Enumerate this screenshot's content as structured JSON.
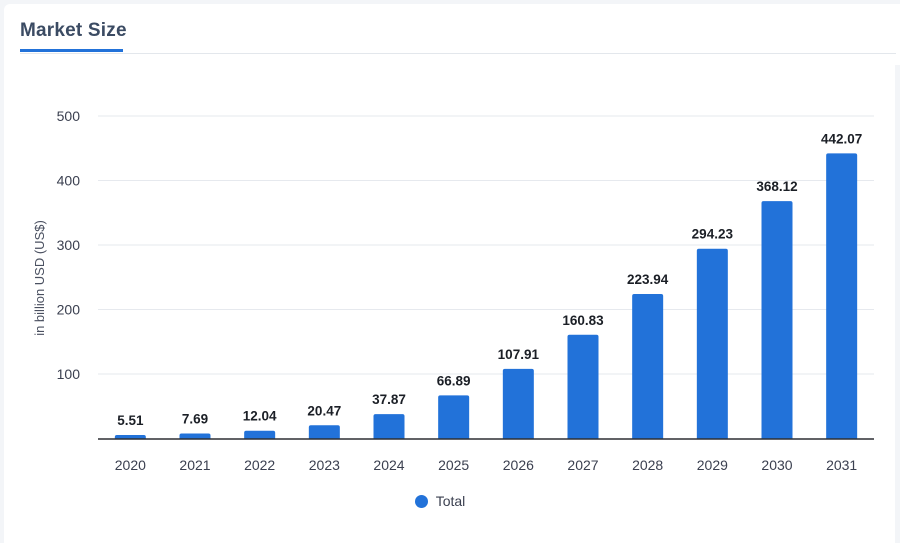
{
  "tabs": [
    {
      "label": "Market Size"
    }
  ],
  "colors": {
    "bar": "#2272d9",
    "accent": "#2272d9"
  },
  "chart_data": {
    "type": "bar",
    "categories": [
      "2020",
      "2021",
      "2022",
      "2023",
      "2024",
      "2025",
      "2026",
      "2027",
      "2028",
      "2029",
      "2030",
      "2031"
    ],
    "series": [
      {
        "name": "Total",
        "values": [
          5.51,
          7.69,
          12.04,
          20.47,
          37.87,
          66.89,
          107.91,
          160.83,
          223.94,
          294.23,
          368.12,
          442.07
        ]
      }
    ],
    "data_labels": [
      "5.51",
      "7.69",
      "12.04",
      "20.47",
      "37.87",
      "66.89",
      "107.91",
      "160.83",
      "223.94",
      "294.23",
      "368.12",
      "442.07"
    ],
    "title": "",
    "xlabel": "",
    "ylabel": "in billion USD (US$)",
    "ylim": [
      0,
      500
    ],
    "yticks": [
      100,
      200,
      300,
      400,
      500
    ],
    "grid": true,
    "legend": "bottom-center"
  }
}
